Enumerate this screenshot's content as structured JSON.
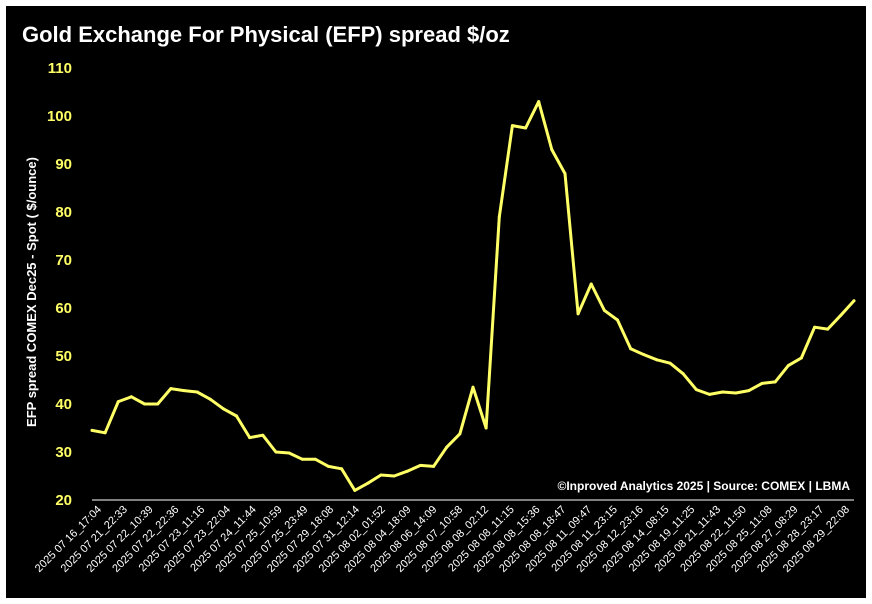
{
  "chart_data": {
    "type": "line",
    "title": "Gold Exchange For Physical (EFP) spread $/oz",
    "ylabel": "EFP spread  COMEX Dec25 - Spot ( $/ounce)",
    "xlabel": "",
    "ylim": [
      20,
      110
    ],
    "yticks": [
      20,
      30,
      40,
      50,
      60,
      70,
      80,
      90,
      100,
      110
    ],
    "annotation": "©Inproved Analytics 2025 | Source: COMEX | LBMA",
    "grid": false,
    "legend": "none",
    "colors": {
      "background": "#000000",
      "line": "#ffff66",
      "ytick": "#ffff66",
      "text": "#ffffff"
    },
    "xticks": [
      "2025 07 16_17:04",
      "2025 07 21_22:33",
      "2025 07 22_10:39",
      "2025 07 22_22:36",
      "2025 07 23_11:16",
      "2025 07 23_22:04",
      "2025 07 24_11:44",
      "2025 07 25_10:59",
      "2025 07 25_23:49",
      "2025 07 29_18:08",
      "2025 07 31_12:14",
      "2025 08 02_01:52",
      "2025 08 04_18:09",
      "2025 08 06_14:09",
      "2025 08 07_10:58",
      "2025 08 08_02:12",
      "2025 08 08_11:15",
      "2025 08 08_15:36",
      "2025 08 08_18:47",
      "2025 08 11_09:47",
      "2025 08 11_23:15",
      "2025 08 12_23:16",
      "2025 08 14_08:15",
      "2025 08 19_11:25",
      "2025 08 21_11:43",
      "2025 08 22_11:50",
      "2025 08 25_11:08",
      "2025 08 27_08:29",
      "2025 08 28_23:17",
      "2025 08 29_22:08"
    ],
    "values": [
      34.5,
      34,
      40.5,
      41.5,
      40,
      40,
      43.2,
      42.8,
      42.5,
      41,
      39,
      37.5,
      33,
      33.5,
      30,
      29.8,
      28.5,
      28.5,
      27,
      26.5,
      22,
      23.5,
      25.2,
      25,
      26,
      27.2,
      27,
      31,
      33.8,
      43.5,
      35,
      79,
      98,
      97.5,
      103,
      93,
      88,
      58.8,
      65,
      59.5,
      57.5,
      51.5,
      50.3,
      49.2,
      48.5,
      46.3,
      43,
      42,
      42.5,
      42.3,
      42.8,
      44.3,
      44.6,
      48,
      49.6,
      56,
      55.6,
      58.5,
      61.5
    ]
  }
}
